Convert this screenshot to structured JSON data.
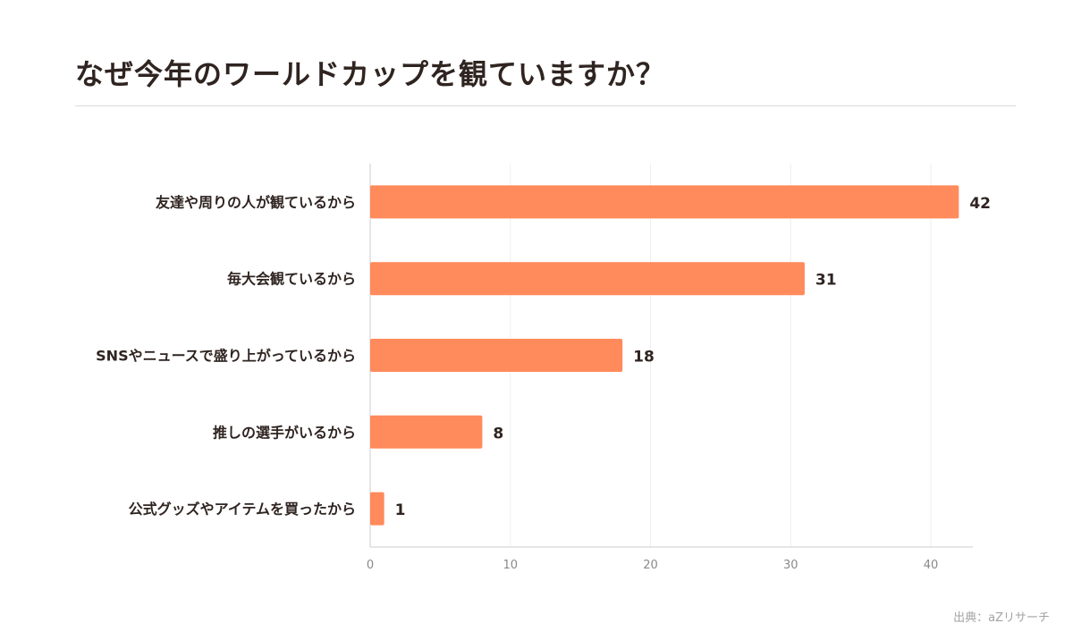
{
  "header": {
    "title": "なぜ今年のワールドカップを観ていますか？"
  },
  "footer": {
    "source": "出典：aZリサーチ"
  },
  "colors": {
    "bar": "#ff8a5b",
    "grid": "#eeeeee",
    "axis": "#cccccc",
    "label": "#2f2420",
    "tick": "#8a8a8a"
  },
  "chart_data": {
    "type": "bar",
    "orientation": "horizontal",
    "categories": [
      "友達や周りの人が観ているから",
      "毎大会観ているから",
      "SNSやニュースで盛り上がっているから",
      "推しの選手がいるから",
      "公式グッズやアイテムを買ったから"
    ],
    "values": [
      42,
      31,
      18,
      8,
      1
    ],
    "data_labels": [
      "42",
      "31",
      "18",
      "8",
      "1"
    ],
    "xlim": [
      0,
      43
    ],
    "x_ticks": [
      0,
      10,
      20,
      30,
      40
    ],
    "x_tick_labels": [
      "0",
      "10",
      "20",
      "30",
      "40"
    ],
    "grid": true,
    "legend": "none"
  }
}
